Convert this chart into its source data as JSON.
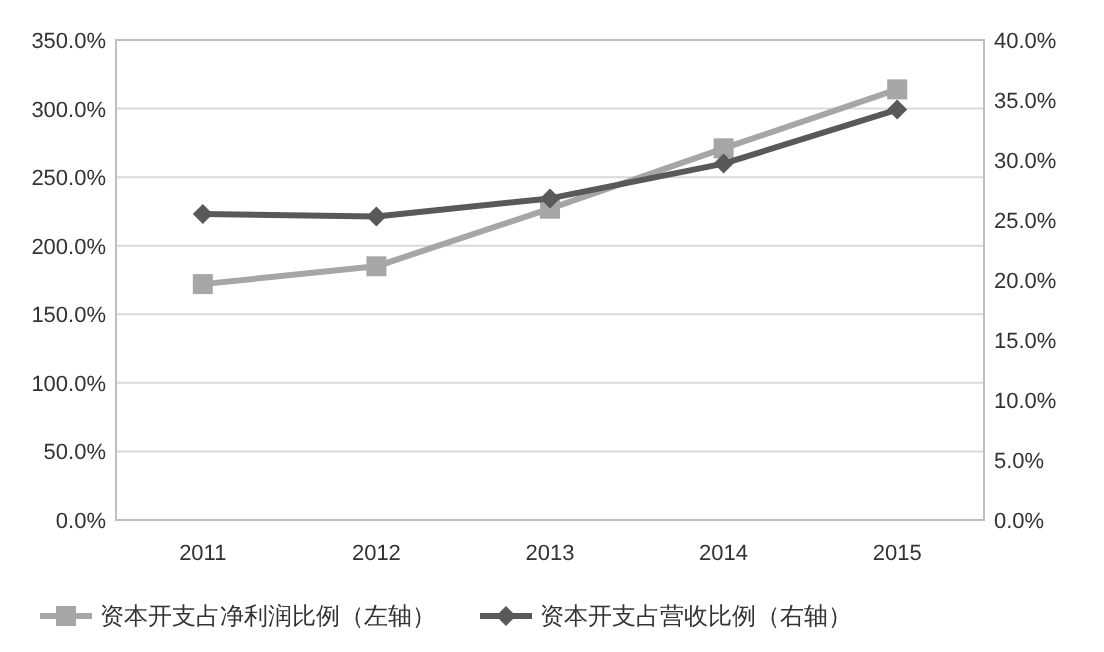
{
  "chart_data": {
    "type": "line",
    "categories": [
      "2011",
      "2012",
      "2013",
      "2014",
      "2015"
    ],
    "series": [
      {
        "name": "资本开支占净利润比例（左轴）",
        "color": "#a6a6a6",
        "marker": "square",
        "values": [
          172,
          185,
          227,
          271,
          314
        ]
      },
      {
        "name": "资本开支占营收比例（右轴）",
        "color": "#595959",
        "marker": "diamond",
        "axis": "y2",
        "values": [
          25.5,
          25.3,
          26.8,
          29.7,
          34.2
        ]
      }
    ],
    "ylim": [
      0,
      350
    ],
    "yticks": [
      {
        "value": 0,
        "label": "0.0%"
      },
      {
        "value": 50,
        "label": "50.0%"
      },
      {
        "value": 100,
        "label": "100.0%"
      },
      {
        "value": 150,
        "label": "150.0%"
      },
      {
        "value": 200,
        "label": "200.0%"
      },
      {
        "value": 250,
        "label": "250.0%"
      },
      {
        "value": 300,
        "label": "300.0%"
      },
      {
        "value": 350,
        "label": "350.0%"
      }
    ],
    "y2lim": [
      0,
      40
    ],
    "y2ticks": [
      {
        "value": 0,
        "label": "0.0%"
      },
      {
        "value": 5,
        "label": "5.0%"
      },
      {
        "value": 10,
        "label": "10.0%"
      },
      {
        "value": 15,
        "label": "15.0%"
      },
      {
        "value": 20,
        "label": "20.0%"
      },
      {
        "value": 25,
        "label": "25.0%"
      },
      {
        "value": 30,
        "label": "30.0%"
      },
      {
        "value": 35,
        "label": "35.0%"
      },
      {
        "value": 40,
        "label": "40.0%"
      }
    ],
    "grid": "y",
    "legend": "bottom"
  }
}
